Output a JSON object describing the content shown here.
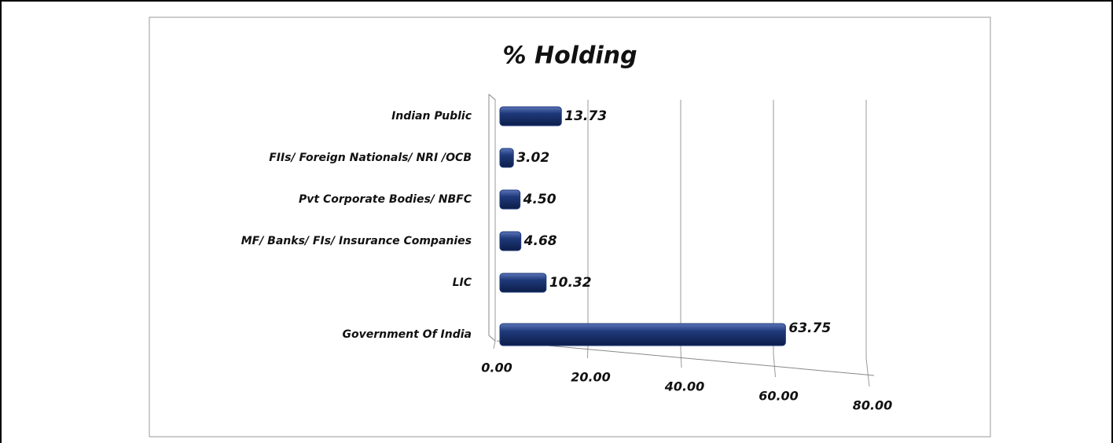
{
  "chart_data": {
    "type": "bar",
    "orientation": "horizontal",
    "title": "% Holding",
    "categories": [
      "Indian Public",
      "FIIs/ Foreign Nationals/ NRI /OCB",
      "Pvt Corporate Bodies/ NBFC",
      "MF/ Banks/ FIs/ Insurance Companies",
      "LIC",
      "Government Of India"
    ],
    "values": [
      13.73,
      3.02,
      4.5,
      4.68,
      10.32,
      63.75
    ],
    "value_labels": [
      "13.73",
      "3.02",
      "4.50",
      "4.68",
      "10.32",
      "63.75"
    ],
    "color": "#1f3a7a",
    "xlim": [
      0,
      80
    ],
    "xticks": [
      {
        "value": 0,
        "label": "0.00"
      },
      {
        "value": 20,
        "label": "20.00"
      },
      {
        "value": 40,
        "label": "40.00"
      },
      {
        "value": 60,
        "label": "60.00"
      },
      {
        "value": 80,
        "label": "80.00"
      }
    ],
    "grid": true
  }
}
